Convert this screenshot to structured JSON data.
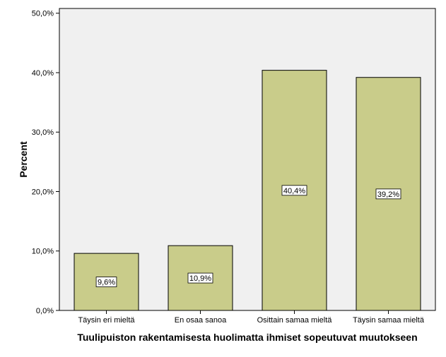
{
  "chart_data": {
    "type": "bar",
    "categories": [
      "Täysin eri mieltä",
      "En osaa sanoa",
      "Osittain samaa mieltä",
      "Täysin samaa mieltä"
    ],
    "values": [
      9.6,
      10.9,
      40.4,
      39.2
    ],
    "data_labels": [
      "9,6%",
      "10,9%",
      "40,4%",
      "39,2%"
    ],
    "xlabel": "Tuulipuiston rakentamisesta huolimatta ihmiset sopeutuvat muutokseen",
    "ylabel": "Percent",
    "ylim": [
      0,
      50
    ],
    "yticks": [
      0,
      10,
      20,
      30,
      40,
      50
    ],
    "ytick_labels": [
      "0,0%",
      "10,0%",
      "20,0%",
      "30,0%",
      "40,0%",
      "50,0%"
    ],
    "colors": {
      "plot_bg": "#f0f0f0",
      "bar_fill": "#c9cc8a",
      "bar_stroke": "#000000"
    },
    "grid": false,
    "legend": "none"
  }
}
